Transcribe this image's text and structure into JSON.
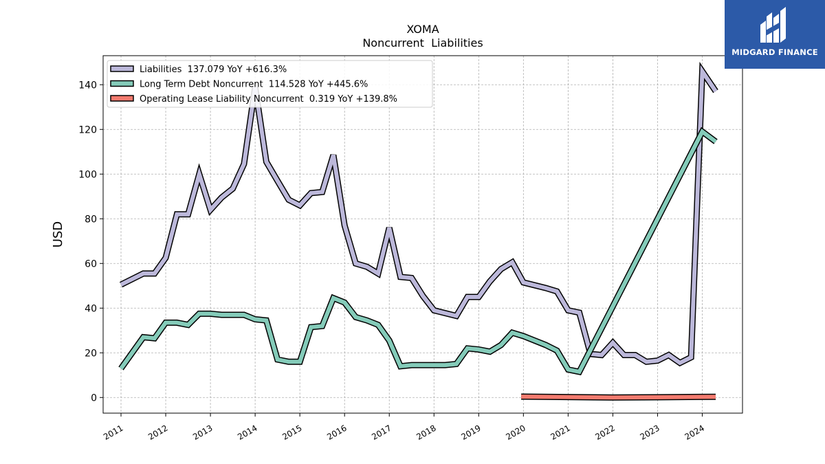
{
  "chart_data": {
    "type": "line",
    "title": "XOMA",
    "subtitle": "Noncurrent  Liabilities",
    "ylabel": "USD",
    "xlabel": "",
    "xlim": [
      2010.6,
      2024.9
    ],
    "ylim": [
      -7,
      153
    ],
    "grid": true,
    "legend_position": "top-left",
    "x_ticks": [
      2011,
      2012,
      2013,
      2014,
      2015,
      2016,
      2017,
      2018,
      2019,
      2020,
      2021,
      2022,
      2023,
      2024
    ],
    "x_tick_labels": [
      "2011",
      "2012",
      "2013",
      "2014",
      "2015",
      "2016",
      "2017",
      "2018",
      "2019",
      "2020",
      "2021",
      "2022",
      "2023",
      "2024"
    ],
    "y_ticks": [
      0,
      20,
      40,
      60,
      80,
      100,
      120,
      140
    ],
    "y_tick_labels": [
      "0",
      "20",
      "40",
      "60",
      "80",
      "100",
      "120",
      "140"
    ],
    "series": [
      {
        "name": "Liabilities",
        "legend_label": "Liabilities  137.079 YoY +616.3%",
        "color": "#bcb8da",
        "points": [
          [
            2011.0,
            50.5
          ],
          [
            2011.5,
            55.5
          ],
          [
            2011.75,
            55.5
          ],
          [
            2012.0,
            62.5
          ],
          [
            2012.25,
            82
          ],
          [
            2012.5,
            82
          ],
          [
            2012.75,
            100
          ],
          [
            2013.0,
            84
          ],
          [
            2013.25,
            89.5
          ],
          [
            2013.5,
            93.5
          ],
          [
            2013.75,
            104.5
          ],
          [
            2014.0,
            139
          ],
          [
            2014.25,
            105.5
          ],
          [
            2014.5,
            97
          ],
          [
            2014.75,
            88.5
          ],
          [
            2015.0,
            86
          ],
          [
            2015.25,
            91.5
          ],
          [
            2015.5,
            92
          ],
          [
            2015.75,
            108.5
          ],
          [
            2016.0,
            77
          ],
          [
            2016.25,
            60
          ],
          [
            2016.5,
            58.5
          ],
          [
            2016.75,
            55.5
          ],
          [
            2017.0,
            76
          ],
          [
            2017.25,
            54
          ],
          [
            2017.5,
            53.5
          ],
          [
            2017.75,
            45.5
          ],
          [
            2018.0,
            39
          ],
          [
            2018.5,
            36.5
          ],
          [
            2018.75,
            45
          ],
          [
            2019.0,
            45
          ],
          [
            2019.25,
            52
          ],
          [
            2019.5,
            57.5
          ],
          [
            2019.75,
            60.5
          ],
          [
            2020.0,
            51.5
          ],
          [
            2020.5,
            49
          ],
          [
            2020.75,
            47.5
          ],
          [
            2021.0,
            39
          ],
          [
            2021.25,
            38
          ],
          [
            2021.5,
            19.5
          ],
          [
            2021.75,
            19
          ],
          [
            2022.0,
            24.5
          ],
          [
            2022.25,
            19
          ],
          [
            2022.5,
            19
          ],
          [
            2022.75,
            16
          ],
          [
            2023.0,
            16.5
          ],
          [
            2023.25,
            19
          ],
          [
            2023.5,
            15.5
          ],
          [
            2023.75,
            18
          ],
          [
            2024.0,
            146
          ],
          [
            2024.3,
            137.079
          ]
        ]
      },
      {
        "name": "Long Term Debt Noncurrent",
        "legend_label": "Long Term Debt Noncurrent  114.528 YoY +445.6%",
        "color": "#84cbb9",
        "points": [
          [
            2011.0,
            13
          ],
          [
            2011.5,
            27
          ],
          [
            2011.75,
            26.5
          ],
          [
            2012.0,
            33.5
          ],
          [
            2012.25,
            33.5
          ],
          [
            2012.5,
            32.5
          ],
          [
            2012.75,
            37.5
          ],
          [
            2013.0,
            37.5
          ],
          [
            2013.25,
            37
          ],
          [
            2013.5,
            37
          ],
          [
            2013.75,
            37
          ],
          [
            2014.0,
            35
          ],
          [
            2014.25,
            34.5
          ],
          [
            2014.5,
            17
          ],
          [
            2014.75,
            16
          ],
          [
            2015.0,
            16
          ],
          [
            2015.25,
            31.5
          ],
          [
            2015.5,
            32
          ],
          [
            2015.75,
            44.5
          ],
          [
            2016.0,
            42.5
          ],
          [
            2016.25,
            36
          ],
          [
            2016.5,
            34.5
          ],
          [
            2016.75,
            32.5
          ],
          [
            2017.0,
            25.5
          ],
          [
            2017.25,
            14
          ],
          [
            2017.5,
            14.5
          ],
          [
            2017.75,
            14.5
          ],
          [
            2018.0,
            14.5
          ],
          [
            2018.25,
            14.5
          ],
          [
            2018.5,
            15
          ],
          [
            2018.75,
            22
          ],
          [
            2019.0,
            21.5
          ],
          [
            2019.25,
            20.5
          ],
          [
            2019.5,
            23.5
          ],
          [
            2019.75,
            29
          ],
          [
            2020.0,
            27.5
          ],
          [
            2020.25,
            25.5
          ],
          [
            2020.5,
            23.5
          ],
          [
            2020.75,
            21
          ],
          [
            2021.0,
            12.5
          ],
          [
            2021.25,
            11.5
          ],
          [
            2024.0,
            119
          ],
          [
            2024.3,
            114.528
          ]
        ]
      },
      {
        "name": "Operating Lease Liability Noncurrent",
        "legend_label": "Operating Lease Liability Noncurrent  0.319 YoY +139.8%",
        "color": "#f47b6f",
        "points": [
          [
            2019.95,
            0.4
          ],
          [
            2021.0,
            0.2
          ],
          [
            2022.0,
            0.0
          ],
          [
            2023.0,
            0.1
          ],
          [
            2024.3,
            0.319
          ]
        ]
      }
    ]
  },
  "logo": {
    "text": "MIDGARD FINANCE",
    "background": "#2c5aa8",
    "color": "#ffffff"
  }
}
